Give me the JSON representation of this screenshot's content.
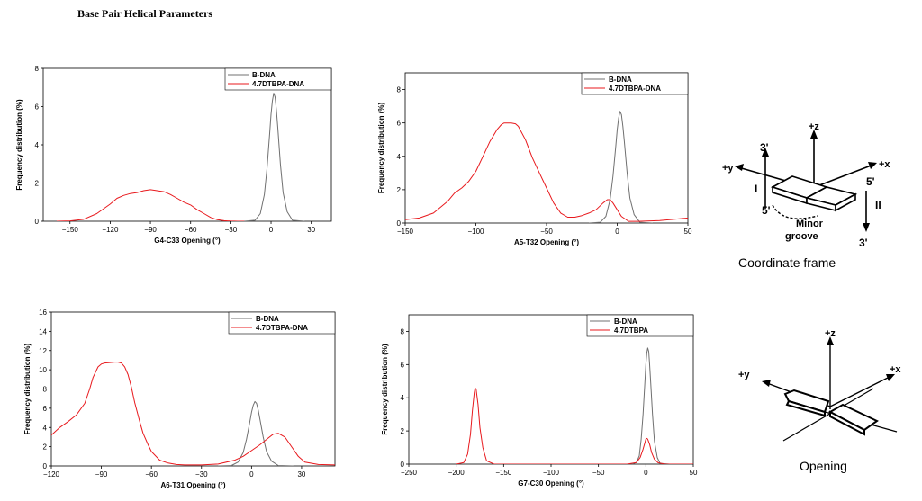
{
  "page": {
    "title": "Base Pair Helical Parameters"
  },
  "colors": {
    "bdna": "#707070",
    "complex": "#e8191d",
    "axis": "#000000"
  },
  "chart_data": [
    {
      "type": "line",
      "xlabel": "G4-C33 Opening (°)",
      "ylabel": "Frequency distribution (%)",
      "xlim": [
        -170,
        45
      ],
      "ylim": [
        0,
        8
      ],
      "xticks": [
        -150,
        -120,
        -90,
        -60,
        -30,
        0,
        30
      ],
      "yticks": [
        0,
        2,
        4,
        6,
        8
      ],
      "legend_position": "top-right",
      "series": [
        {
          "name": "B-DNA",
          "color": "#707070",
          "x": [
            -20,
            -12,
            -8,
            -5,
            -3,
            -1,
            0,
            1,
            2,
            3,
            4,
            5,
            7,
            9,
            12,
            16,
            25
          ],
          "y": [
            0,
            0.05,
            0.4,
            1.4,
            2.8,
            4.6,
            5.6,
            6.3,
            6.7,
            6.5,
            5.8,
            4.9,
            3.0,
            1.5,
            0.5,
            0.05,
            0
          ]
        },
        {
          "name": "4.7DTBPA-DNA",
          "color": "#e8191d",
          "x": [
            -160,
            -150,
            -140,
            -130,
            -120,
            -115,
            -110,
            -105,
            -100,
            -95,
            -90,
            -85,
            -80,
            -75,
            -70,
            -65,
            -60,
            -55,
            -50,
            -45,
            -40,
            -35,
            -30,
            -25,
            -20
          ],
          "y": [
            0,
            0.02,
            0.1,
            0.4,
            0.9,
            1.2,
            1.35,
            1.45,
            1.5,
            1.6,
            1.65,
            1.6,
            1.55,
            1.4,
            1.2,
            1.0,
            0.85,
            0.6,
            0.4,
            0.2,
            0.08,
            0.03,
            0.01,
            0,
            0
          ]
        }
      ]
    },
    {
      "type": "line",
      "xlabel": "A5-T32 Opening (°)",
      "ylabel": "Frequency distribution (%)",
      "xlim": [
        -150,
        50
      ],
      "ylim": [
        0,
        9
      ],
      "xticks": [
        -150,
        -100,
        -50,
        0,
        50
      ],
      "yticks": [
        0,
        2,
        4,
        6,
        8
      ],
      "legend_position": "top-right",
      "series": [
        {
          "name": "B-DNA",
          "color": "#707070",
          "x": [
            -20,
            -12,
            -8,
            -5,
            -3,
            -1,
            0,
            1,
            2,
            3,
            4,
            5,
            7,
            9,
            12,
            16,
            25
          ],
          "y": [
            0,
            0.05,
            0.4,
            1.4,
            2.8,
            4.6,
            5.6,
            6.3,
            6.7,
            6.5,
            5.8,
            4.9,
            3.0,
            1.5,
            0.5,
            0.05,
            0
          ]
        },
        {
          "name": "4.7DTBPA-DNA",
          "color": "#e8191d",
          "x": [
            -150,
            -140,
            -130,
            -120,
            -115,
            -110,
            -105,
            -100,
            -95,
            -90,
            -85,
            -82,
            -80,
            -75,
            -72,
            -70,
            -65,
            -60,
            -55,
            -50,
            -45,
            -40,
            -35,
            -30,
            -25,
            -20,
            -15,
            -10,
            -7,
            -5,
            -3,
            0,
            3,
            8,
            15,
            30,
            50
          ],
          "y": [
            0.2,
            0.3,
            0.6,
            1.3,
            1.8,
            2.1,
            2.5,
            3.1,
            4.0,
            4.9,
            5.6,
            5.9,
            6.0,
            6.0,
            5.95,
            5.8,
            5.0,
            3.9,
            3.0,
            2.1,
            1.2,
            0.6,
            0.35,
            0.35,
            0.45,
            0.6,
            0.8,
            1.2,
            1.4,
            1.4,
            1.2,
            0.8,
            0.4,
            0.1,
            0.1,
            0.15,
            0.3
          ]
        }
      ]
    },
    {
      "type": "line",
      "xlabel": "A6-T31 Opening (°)",
      "ylabel": "Frequency distribution (%)",
      "xlim": [
        -120,
        50
      ],
      "ylim": [
        0,
        16
      ],
      "xticks": [
        -120,
        -90,
        -60,
        -30,
        0,
        30
      ],
      "yticks": [
        0,
        2,
        4,
        6,
        8,
        10,
        12,
        14,
        16
      ],
      "legend_position": "top-right",
      "series": [
        {
          "name": "B-DNA",
          "color": "#707070",
          "x": [
            -20,
            -12,
            -8,
            -5,
            -3,
            -1,
            0,
            1,
            2,
            3,
            4,
            5,
            7,
            9,
            12,
            16,
            25
          ],
          "y": [
            0,
            0.05,
            0.4,
            1.4,
            2.8,
            4.6,
            5.6,
            6.3,
            6.7,
            6.5,
            5.8,
            4.9,
            3.0,
            1.5,
            0.5,
            0.05,
            0
          ]
        },
        {
          "name": "4.7DTBPA-DNA",
          "color": "#e8191d",
          "x": [
            -120,
            -115,
            -110,
            -105,
            -100,
            -97,
            -95,
            -92,
            -90,
            -88,
            -85,
            -82,
            -80,
            -78,
            -76,
            -74,
            -72,
            -70,
            -67,
            -65,
            -62,
            -60,
            -55,
            -50,
            -45,
            -40,
            -30,
            -20,
            -10,
            -5,
            0,
            5,
            10,
            13,
            16,
            20,
            24,
            28,
            32,
            40,
            50
          ],
          "y": [
            3.2,
            4.0,
            4.6,
            5.3,
            6.5,
            8.0,
            9.2,
            10.3,
            10.6,
            10.7,
            10.75,
            10.8,
            10.8,
            10.7,
            10.3,
            9.5,
            8.2,
            6.6,
            4.6,
            3.4,
            2.2,
            1.5,
            0.6,
            0.3,
            0.15,
            0.1,
            0.1,
            0.2,
            0.6,
            1.0,
            1.6,
            2.2,
            2.9,
            3.3,
            3.4,
            3.0,
            2.0,
            1.0,
            0.4,
            0.15,
            0.1
          ]
        }
      ]
    },
    {
      "type": "line",
      "xlabel": "G7-C30 Opening (°)",
      "ylabel": "Frequency distribution (%)",
      "xlim": [
        -250,
        50
      ],
      "ylim": [
        0,
        9
      ],
      "xticks": [
        -250,
        -200,
        -150,
        -100,
        -50,
        0,
        50
      ],
      "yticks": [
        0,
        2,
        4,
        6,
        8
      ],
      "legend_position": "top-right",
      "series": [
        {
          "name": "B-DNA",
          "color": "#707070",
          "x": [
            -15,
            -10,
            -7,
            -5,
            -3,
            -1,
            0,
            1,
            2,
            3,
            4,
            5,
            7,
            9,
            12,
            15,
            25
          ],
          "y": [
            0,
            0.1,
            0.5,
            1.5,
            3.0,
            5.0,
            6.0,
            6.7,
            7.0,
            6.8,
            6.0,
            5.0,
            3.0,
            1.4,
            0.4,
            0.05,
            0
          ]
        },
        {
          "name": "4.7DTBPA",
          "color": "#e8191d",
          "x": [
            -200,
            -192,
            -188,
            -185,
            -183,
            -181,
            -180,
            -179,
            -177,
            -175,
            -172,
            -168,
            -160,
            -100,
            -20,
            -10,
            -6,
            -3,
            -1,
            0,
            1,
            2,
            4,
            6,
            9,
            13,
            20,
            50
          ],
          "y": [
            0,
            0.1,
            0.6,
            1.8,
            3.2,
            4.3,
            4.6,
            4.5,
            3.6,
            2.2,
            1.0,
            0.2,
            0,
            0,
            0,
            0.1,
            0.4,
            0.9,
            1.3,
            1.5,
            1.55,
            1.5,
            1.2,
            0.7,
            0.3,
            0.08,
            0,
            0
          ]
        }
      ]
    }
  ],
  "diagrams": {
    "coordinate_frame": {
      "caption": "Coordinate frame",
      "axis_z": "+z",
      "axis_x": "+x",
      "axis_y": "+y",
      "strand_three_left": "3'",
      "strand_five_right": "5'",
      "strand_five_left": "5'",
      "strand_three_right": "3'",
      "strand_one": "I",
      "strand_two": "II",
      "groove_line1": "Minor",
      "groove_line2": "groove"
    },
    "opening": {
      "caption": "Opening",
      "axis_z": "+z",
      "axis_x": "+x",
      "axis_y": "+y"
    }
  }
}
